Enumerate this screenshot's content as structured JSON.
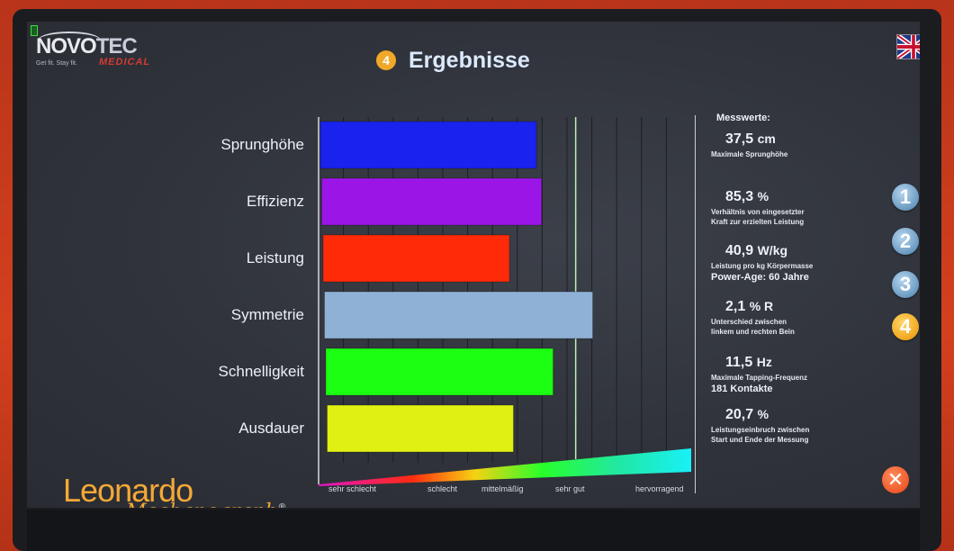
{
  "header": {
    "logo_brand_a": "NOVO",
    "logo_brand_b": "TEC",
    "logo_sub": "MEDICAL",
    "logo_tagline": "Get fit. Stay fit.",
    "step_number": "4",
    "title": "Ergebnisse",
    "language_flag": "flag-uk-icon"
  },
  "chart_data": {
    "type": "bar",
    "orientation": "horizontal",
    "categories": [
      "Sprunghöhe",
      "Effizienz",
      "Leistung",
      "Symmetrie",
      "Schnelligkeit",
      "Ausdauer"
    ],
    "values": [
      0.58,
      0.59,
      0.5,
      0.72,
      0.61,
      0.5
    ],
    "value_unit": "fraction of scale",
    "colors": [
      "#1a22ee",
      "#9b16e6",
      "#ff2a08",
      "#8fb1d6",
      "#1cff12",
      "#e0f013"
    ],
    "scale_labels": [
      "sehr schlecht",
      "schlecht",
      "mittelmäßig",
      "sehr gut",
      "hervorragend"
    ],
    "reference_line_label": "sehr gut",
    "reference_value": 0.69
  },
  "results": {
    "heading": "Messwerte:",
    "items": [
      {
        "value": "37,5",
        "unit": "cm",
        "desc": [
          "Maximale Sprunghöhe"
        ],
        "extra": ""
      },
      {
        "value": "85,3",
        "unit": "%",
        "desc": [
          "Verhältnis von eingesetzter",
          "Kraft zur erzielten Leistung"
        ],
        "extra": ""
      },
      {
        "value": "40,9",
        "unit": "W/kg",
        "desc": [
          "Leistung pro kg Körpermasse"
        ],
        "extra": "Power-Age: 60 Jahre"
      },
      {
        "value": "2,1",
        "unit": "% R",
        "desc": [
          "Unterschied zwischen",
          "linkem und rechten Bein"
        ],
        "extra": ""
      },
      {
        "value": "11,5",
        "unit": "Hz",
        "desc": [
          "Maximale Tapping-Frequenz"
        ],
        "extra": "181 Kontakte"
      },
      {
        "value": "20,7",
        "unit": "%",
        "desc": [
          "Leistungseinbruch zwischen",
          "Start und Ende der Messung"
        ],
        "extra": ""
      }
    ]
  },
  "steps": [
    "1",
    "2",
    "3",
    "4"
  ],
  "active_step": "4",
  "close_icon": "close-icon",
  "footer": {
    "brand_main": "Leonardo",
    "brand_sub": "Mechanograph",
    "brand_mark": "®"
  }
}
